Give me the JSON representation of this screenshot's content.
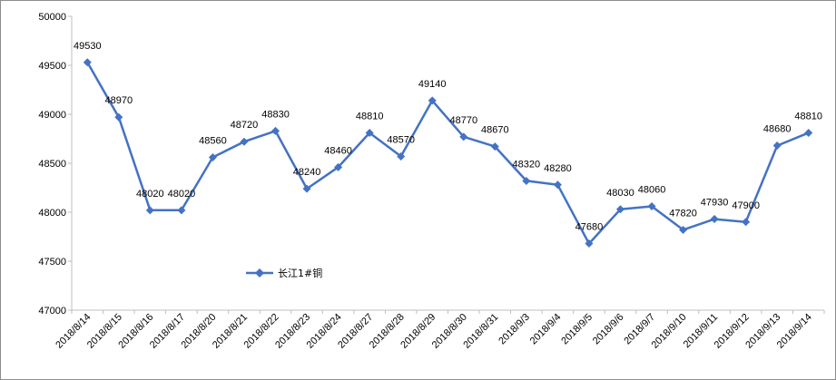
{
  "chart_data": {
    "type": "line",
    "title": "",
    "xlabel": "",
    "ylabel": "",
    "ylim": [
      47000,
      50000
    ],
    "y_ticks": [
      47000,
      47500,
      48000,
      48500,
      49000,
      49500,
      50000
    ],
    "grid": false,
    "legend_position": "left-middle",
    "categories": [
      "2018/8/14",
      "2018/8/15",
      "2018/8/16",
      "2018/8/17",
      "2018/8/20",
      "2018/8/21",
      "2018/8/22",
      "2018/8/23",
      "2018/8/24",
      "2018/8/27",
      "2018/8/28",
      "2018/8/29",
      "2018/8/30",
      "2018/8/31",
      "2018/9/3",
      "2018/9/4",
      "2018/9/5",
      "2018/9/6",
      "2018/9/7",
      "2018/9/10",
      "2018/9/11",
      "2018/9/12",
      "2018/9/13",
      "2018/9/14"
    ],
    "series": [
      {
        "name": "长江1#铜",
        "color": "#4472c4",
        "marker": "diamond",
        "values": [
          49530,
          48970,
          48020,
          48020,
          48560,
          48720,
          48830,
          48240,
          48460,
          48810,
          48570,
          49140,
          48770,
          48670,
          48320,
          48280,
          47680,
          48030,
          48060,
          47820,
          47930,
          47900,
          48680,
          48810
        ]
      }
    ]
  }
}
